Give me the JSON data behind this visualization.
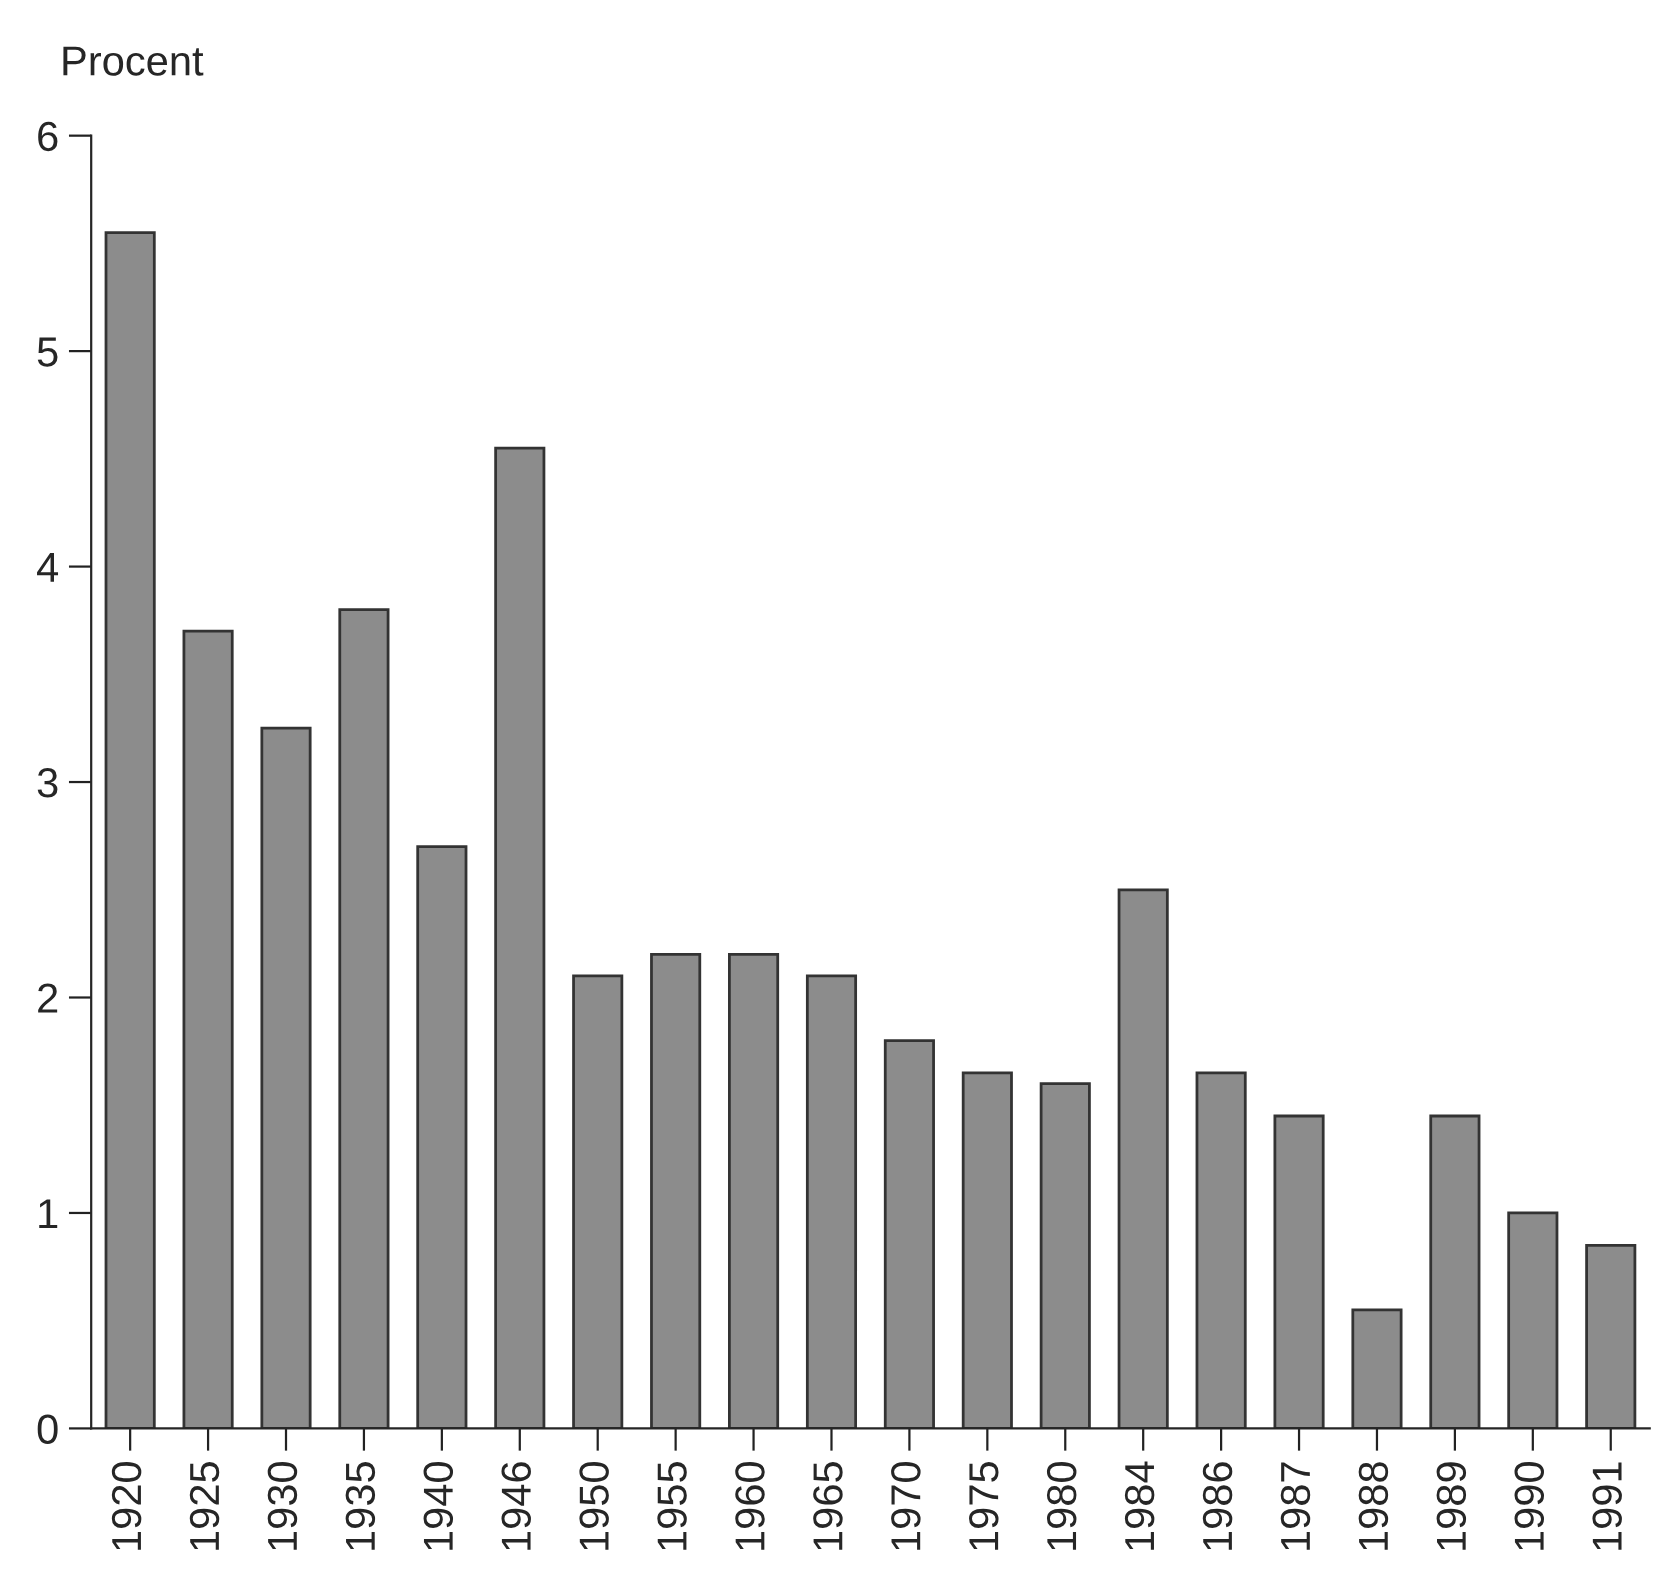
{
  "chart_data": {
    "type": "bar",
    "ylabel": "Procent",
    "categories": [
      "1920",
      "1925",
      "1930",
      "1935",
      "1940",
      "1946",
      "1950",
      "1955",
      "1960",
      "1965",
      "1970",
      "1975",
      "1980",
      "1984",
      "1986",
      "1987",
      "1988",
      "1989",
      "1990",
      "1991"
    ],
    "values": [
      5.55,
      3.7,
      3.25,
      3.8,
      2.7,
      4.55,
      2.1,
      2.2,
      2.2,
      2.1,
      1.8,
      1.65,
      1.6,
      2.5,
      1.65,
      1.45,
      0.55,
      1.45,
      1.0,
      0.85
    ],
    "color": "#8c8c8c",
    "ylim": [
      0,
      6
    ],
    "yticks": [
      0,
      1,
      2,
      3,
      4,
      5,
      6
    ],
    "grid": false,
    "legend": false
  }
}
